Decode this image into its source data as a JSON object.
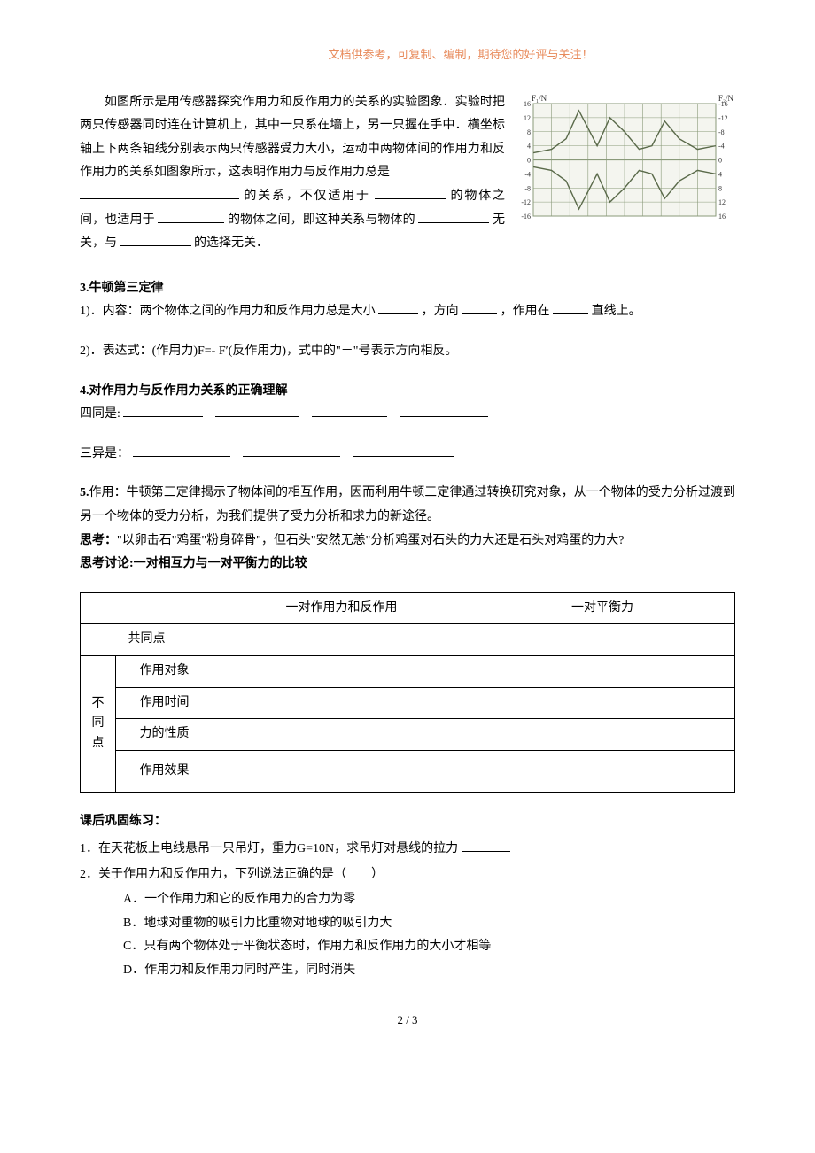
{
  "header_note": "文档供参考，可复制、编制，期待您的好评与关注！",
  "experiment": {
    "p1": "如图所示是用传感器探究作用力和反作用力的关系的实验图象．实验时把两只传感器同时连在计算机上，其中一只系在墙上，另一只握在手中．横坐标轴上下两条轴线分别表示两只传感器受力大小，运动中两物体间的作用力和反作用力的关系如图象所示，这表明作用力与反作用力总是",
    "p2_a": " 的关系，不仅适用于",
    "p2_b": " 的物体之间，也适用于",
    "p2_c": "的物体之间，即这种关系与物体的",
    "p2_d": "无关，与",
    "p2_e": "的选择无关．"
  },
  "chart": {
    "y_label_left": "F₁/N",
    "y_label_right": "F₂/N",
    "y_max": 16,
    "y_min": -16,
    "y_step": 4,
    "left_ticks": [
      16,
      12,
      8,
      4,
      0,
      -4,
      -8,
      -12,
      -16
    ],
    "right_ticks": [
      -16,
      -12,
      -8,
      -4,
      0,
      4,
      8,
      12,
      16
    ],
    "grid_color": "#8a9a7a",
    "line_color": "#5a6a4a",
    "bg_color": "#f4f5ef",
    "curve_top": [
      [
        0,
        2
      ],
      [
        10,
        3
      ],
      [
        18,
        6
      ],
      [
        25,
        14
      ],
      [
        30,
        9
      ],
      [
        35,
        4
      ],
      [
        42,
        12
      ],
      [
        50,
        8
      ],
      [
        58,
        3
      ],
      [
        65,
        4
      ],
      [
        72,
        11
      ],
      [
        80,
        6
      ],
      [
        90,
        3
      ],
      [
        100,
        4
      ]
    ],
    "curve_bottom": [
      [
        0,
        -2
      ],
      [
        10,
        -3
      ],
      [
        18,
        -6
      ],
      [
        25,
        -14
      ],
      [
        30,
        -9
      ],
      [
        35,
        -4
      ],
      [
        42,
        -12
      ],
      [
        50,
        -8
      ],
      [
        58,
        -3
      ],
      [
        65,
        -4
      ],
      [
        72,
        -11
      ],
      [
        80,
        -6
      ],
      [
        90,
        -3
      ],
      [
        100,
        -4
      ]
    ]
  },
  "sec3": {
    "title": "3.牛顿第三定律",
    "line1_a": "1)．内容：两个物体之间的作用力和反作用力总是大小",
    "line1_b": "，方向",
    "line1_c": "，作用在",
    "line1_d": "直线上。",
    "line2": "2)．表达式：(作用力)F=- F′(反作用力)，式中的\"－\"号表示方向相反。"
  },
  "sec4": {
    "title": "4.对作用力与反作用力关系的正确理解",
    "four_same": "四同是:",
    "three_diff": "三异是："
  },
  "sec5": {
    "p1": "作用：牛顿第三定律揭示了物体间的相互作用，因而利用牛顿三定律通过转换研究对象，从一个物体的受力分析过渡到另一个物体的受力分析，为我们提供了受力分析和求力的新途径。",
    "think_label": "思考：",
    "think_body": "\"以卵击石\"鸡蛋\"粉身碎骨\"，但石头\"安然无恙\"分析鸡蛋对石头的力大还是石头对鸡蛋的力大?",
    "discuss": "思考讨论:一对相互力与一对平衡力的比较"
  },
  "table": {
    "head_a": "一对作用力和反作用",
    "head_b": "一对平衡力",
    "row_common": "共同点",
    "row_diff": "不同点",
    "sub_rows": [
      "作用对象",
      "作用时间",
      "力的性质",
      "作用效果"
    ]
  },
  "exercises": {
    "title": "课后巩固练习：",
    "q1": "1．在天花板上电线悬吊一只吊灯，重力G=10N，求吊灯对悬线的拉力",
    "q2": "2．关于作用力和反作用力，下列说法正确的是（　　）",
    "opts": {
      "A": "A．一个作用力和它的反作用力的合力为零",
      "B": "B．地球对重物的吸引力比重物对地球的吸引力大",
      "C": "C．只有两个物体处于平衡状态时，作用力和反作用力的大小才相等",
      "D": "D．作用力和反作用力同时产生，同时消失"
    }
  },
  "page_num": "2  /  3"
}
